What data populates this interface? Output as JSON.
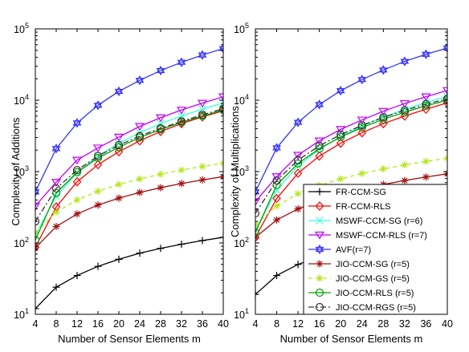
{
  "chart_data": [
    {
      "type": "line",
      "xlabel": "Number of Sensor Elements m",
      "ylabel": "Complexity of Additions",
      "yscale": "log",
      "xlim": [
        4,
        40
      ],
      "ylim": [
        10,
        100000
      ],
      "x_ticks": [
        "4",
        "8",
        "12",
        "16",
        "20",
        "24",
        "28",
        "32",
        "36",
        "40"
      ],
      "y_ticks": [
        {
          "base": "10",
          "exp": "1"
        },
        {
          "base": "10",
          "exp": "2"
        },
        {
          "base": "10",
          "exp": "3"
        },
        {
          "base": "10",
          "exp": "4"
        },
        {
          "base": "10",
          "exp": "5"
        }
      ],
      "grid": false,
      "x": [
        4,
        8,
        12,
        16,
        20,
        24,
        28,
        32,
        36,
        40
      ],
      "series": [
        {
          "name": "FR-CCM-SG",
          "values": [
            12,
            24,
            35,
            47,
            59,
            72,
            84,
            96,
            108,
            120
          ]
        },
        {
          "name": "FR-CCM-RLS",
          "values": [
            87,
            320,
            720,
            1250,
            1900,
            2700,
            3650,
            4700,
            5850,
            7100
          ]
        },
        {
          "name": "MSWF-CCM-SG (r=6)",
          "values": [
            130,
            450,
            960,
            1650,
            2500,
            3500,
            4700,
            6000,
            7500,
            9200
          ]
        },
        {
          "name": "MSWF-CCM-RLS (r=7)",
          "values": [
            330,
            710,
            1450,
            2150,
            3050,
            4300,
            5700,
            7300,
            9100,
            11200
          ]
        },
        {
          "name": "AVF(r=7)",
          "values": [
            520,
            2100,
            4800,
            8500,
            13300,
            19000,
            26000,
            34000,
            43000,
            53000
          ]
        },
        {
          "name": "JIO-CCM-SG (r=5)",
          "values": [
            85,
            170,
            255,
            340,
            425,
            510,
            595,
            680,
            765,
            850
          ]
        },
        {
          "name": "JIO-CCM-GS (r=5)",
          "values": [
            140,
            270,
            400,
            530,
            660,
            790,
            920,
            1050,
            1180,
            1310
          ]
        },
        {
          "name": "JIO-CCM-RLS (r=5)",
          "values": [
            110,
            500,
            980,
            1550,
            2200,
            3000,
            3900,
            4900,
            6000,
            7300
          ]
        },
        {
          "name": "JIO-CCM-RGS (r=5)",
          "values": [
            200,
            580,
            1050,
            1650,
            2350,
            3150,
            4050,
            5050,
            6250,
            7600
          ]
        }
      ]
    },
    {
      "type": "line",
      "xlabel": "Number of Sensor Elements m",
      "ylabel": "Complexity of Multiplications",
      "yscale": "log",
      "xlim": [
        4,
        40
      ],
      "ylim": [
        10,
        100000
      ],
      "x_ticks": [
        "4",
        "8",
        "12",
        "16",
        "20",
        "24",
        "28",
        "32",
        "36",
        "40"
      ],
      "y_ticks": [
        {
          "base": "10",
          "exp": "1"
        },
        {
          "base": "10",
          "exp": "2"
        },
        {
          "base": "10",
          "exp": "3"
        },
        {
          "base": "10",
          "exp": "4"
        },
        {
          "base": "10",
          "exp": "5"
        }
      ],
      "grid": false,
      "legend_position": "bottom-right",
      "x": [
        4,
        8,
        12,
        16,
        20,
        24,
        28,
        32,
        36,
        40
      ],
      "series": [
        {
          "name": "FR-CCM-SG",
          "values": [
            19,
            35,
            50,
            65,
            80,
            95,
            110,
            125,
            140,
            155
          ]
        },
        {
          "name": "FR-CCM-RLS",
          "values": [
            120,
            420,
            950,
            1650,
            2500,
            3500,
            4700,
            6000,
            7500,
            9200
          ]
        },
        {
          "name": "MSWF-CCM-SG (r=6)",
          "values": [
            150,
            550,
            1200,
            2050,
            3100,
            4350,
            5800,
            7450,
            9300,
            11300
          ]
        },
        {
          "name": "MSWF-CCM-RLS (r=7)",
          "values": [
            380,
            850,
            1700,
            2700,
            3900,
            5300,
            7000,
            9000,
            11200,
            13700
          ]
        },
        {
          "name": "AVF(r=7)",
          "values": [
            520,
            2150,
            4900,
            8700,
            13600,
            19500,
            26500,
            35000,
            44000,
            54000
          ]
        },
        {
          "name": "JIO-CCM-SG (r=5)",
          "values": [
            120,
            210,
            300,
            390,
            480,
            570,
            660,
            750,
            840,
            930
          ]
        },
        {
          "name": "JIO-CCM-GS (r=5)",
          "values": [
            180,
            330,
            490,
            640,
            790,
            940,
            1090,
            1240,
            1390,
            1540
          ]
        },
        {
          "name": "JIO-CCM-RLS (r=5)",
          "values": [
            140,
            650,
            1300,
            2100,
            3050,
            4150,
            5400,
            6800,
            8350,
            10000
          ]
        },
        {
          "name": "JIO-CCM-RGS (r=5)",
          "values": [
            260,
            750,
            1450,
            2300,
            3300,
            4450,
            5750,
            7200,
            8800,
            10500
          ]
        }
      ]
    }
  ],
  "series_styles": [
    {
      "color": "#000000",
      "marker": "plus",
      "dash": ""
    },
    {
      "color": "#ff0000",
      "marker": "diamond",
      "dash": ""
    },
    {
      "color": "#3dffd6",
      "marker": "x",
      "dash": ""
    },
    {
      "color": "#bf00ff",
      "marker": "triangle-down",
      "dash": ""
    },
    {
      "color": "#3333ff",
      "marker": "hexagram",
      "dash": ""
    },
    {
      "color": "#a01010",
      "marker": "asterisk",
      "dash": ""
    },
    {
      "color": "#b5e61d",
      "marker": "asterisk",
      "dash": "5,4"
    },
    {
      "color": "#00a000",
      "marker": "circle",
      "dash": ""
    },
    {
      "color": "#333333",
      "marker": "circle",
      "dash": "7,3,2,3"
    }
  ]
}
